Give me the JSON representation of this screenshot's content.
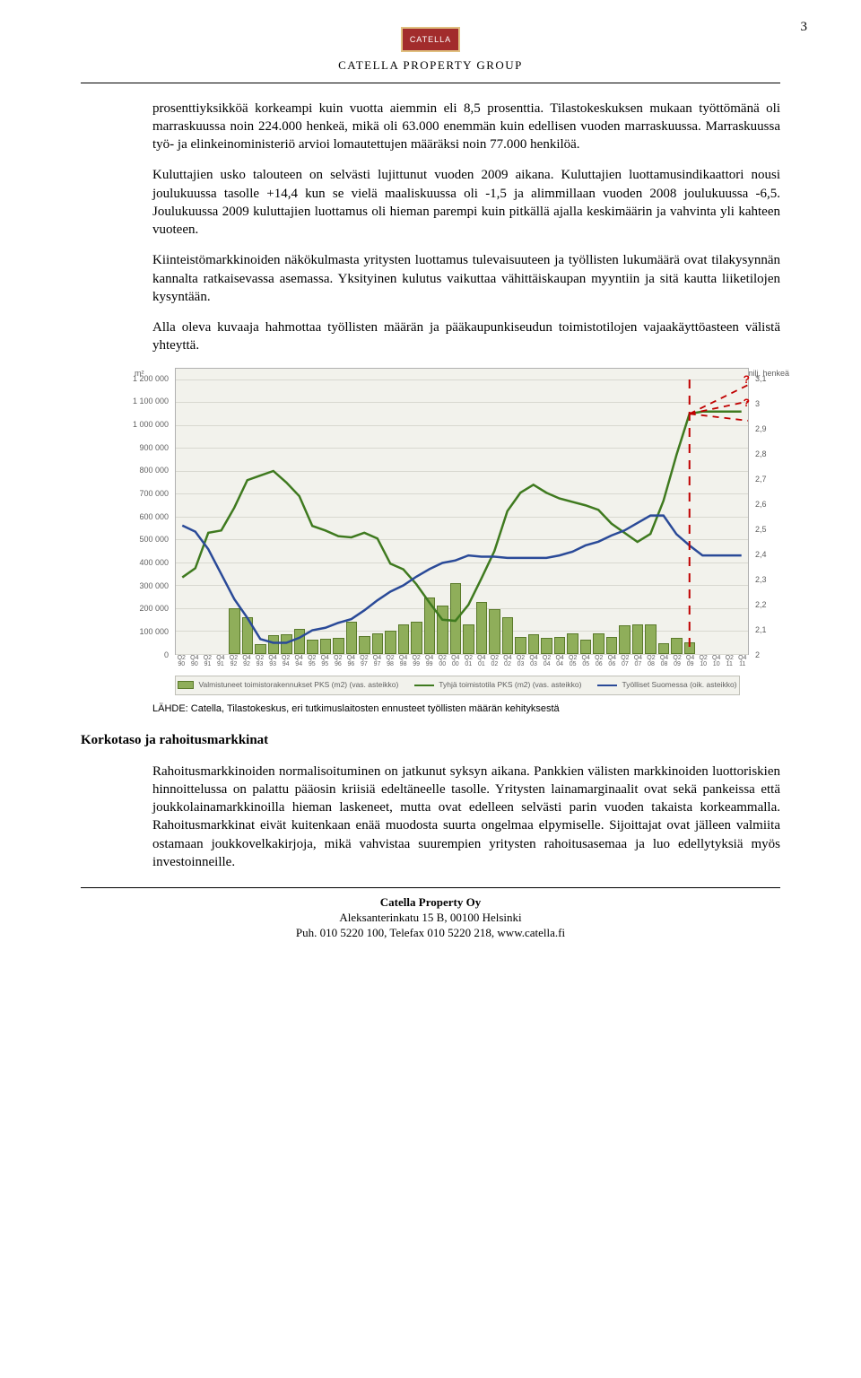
{
  "page_number": "3",
  "logo_text": "CATELLA",
  "company_name": "CATELLA PROPERTY GROUP",
  "paragraphs": {
    "p1": "prosenttiyksikköä korkeampi kuin vuotta aiemmin eli 8,5 prosenttia. Tilastokeskuksen mukaan työttömänä oli marraskuussa noin 224.000 henkeä, mikä oli 63.000 enemmän kuin edellisen vuoden marraskuussa. Marraskuussa työ- ja elinkeinoministeriö arvioi lomautettujen määräksi noin 77.000 henkilöä.",
    "p2": "Kuluttajien usko talouteen on selvästi lujittunut vuoden 2009 aikana. Kuluttajien luottamusindikaattori nousi joulukuussa tasolle +14,4 kun se vielä maaliskuussa oli -1,5 ja alimmillaan vuoden 2008 joulukuussa -6,5. Joulukuussa 2009 kuluttajien luottamus oli hieman parempi kuin pitkällä ajalla keskimäärin ja vahvinta yli kahteen vuoteen.",
    "p3": "Kiinteistömarkkinoiden näkökulmasta yritysten luottamus tulevaisuuteen ja työllisten lukumäärä ovat tilakysynnän kannalta ratkaisevassa asemassa. Yksityinen kulutus vaikuttaa vähittäiskaupan myyntiin ja sitä kautta liiketilojen kysyntään.",
    "p4": "Alla oleva kuvaaja hahmottaa työllisten määrän ja pääkaupunkiseudun toimistotilojen vajaakäyttöasteen välistä yhteyttä.",
    "p5": "Rahoitusmarkkinoiden normalisoituminen on jatkunut syksyn aikana. Pankkien välisten markkinoiden luottoriskien hinnoittelussa on palattu pääosin kriisiä edeltäneelle tasolle. Yritysten lainamarginaalit ovat sekä pankeissa että joukkolainamarkkinoilla hieman laskeneet, mutta ovat edelleen selvästi parin vuoden takaista korkeammalla. Rahoitusmarkkinat eivät kuitenkaan enää muodosta suurta ongelmaa elpymiselle. Sijoittajat ovat jälleen valmiita ostamaan joukkovelkakirjoja, mikä vahvistaa suurempien yritysten rahoitusasemaa ja luo edellytyksiä myös investoinneille."
  },
  "source_line": "LÄHDE: Catella, Tilastokeskus, eri tutkimuslaitosten ennusteet työllisten määrän kehityksestä",
  "section_title": "Korkotaso ja rahoitusmarkkinat",
  "footer": {
    "line1": "Catella Property Oy",
    "line2": "Aleksanterinkatu 15 B, 00100 Helsinki",
    "line3": "Puh. 010 5220 100, Telefax 010 5220 218, www.catella.fi"
  },
  "chart": {
    "left_unit": "m²",
    "right_unit": "milj. henkeä",
    "left_axis": {
      "min": 0,
      "max": 1200000,
      "step": 100000,
      "ticks": [
        "0",
        "100 000",
        "200 000",
        "300 000",
        "400 000",
        "500 000",
        "600 000",
        "700 000",
        "800 000",
        "900 000",
        "1 000 000",
        "1 100 000",
        "1 200 000"
      ]
    },
    "right_axis": {
      "min": 2.0,
      "max": 3.1,
      "step": 0.1,
      "ticks": [
        "2",
        "2,1",
        "2,2",
        "2,3",
        "2,4",
        "2,5",
        "2,6",
        "2,7",
        "2,8",
        "2,9",
        "3",
        "3,1"
      ]
    },
    "x_labels": [
      "Q2 90",
      "Q4 90",
      "Q2 91",
      "Q4 91",
      "Q2 92",
      "Q4 92",
      "Q2 93",
      "Q4 93",
      "Q2 94",
      "Q4 94",
      "Q2 95",
      "Q4 95",
      "Q2 96",
      "Q4 96",
      "Q2 97",
      "Q4 97",
      "Q2 98",
      "Q4 98",
      "Q2 99",
      "Q4 99",
      "Q2 00",
      "Q4 00",
      "Q2 01",
      "Q4 01",
      "Q2 02",
      "Q4 02",
      "Q2 03",
      "Q4 03",
      "Q2 04",
      "Q4 04",
      "Q2 05",
      "Q4 05",
      "Q2 06",
      "Q4 06",
      "Q2 07",
      "Q4 07",
      "Q2 08",
      "Q4 08",
      "Q2 09",
      "Q4 09",
      "Q2 10",
      "Q4 10",
      "Q2 11",
      "Q4 11"
    ],
    "bars_m2": [
      0,
      0,
      0,
      0,
      200000,
      160000,
      42000,
      82000,
      85000,
      110000,
      60000,
      65000,
      70000,
      140000,
      77000,
      90000,
      102000,
      130000,
      140000,
      245000,
      210000,
      310000,
      130000,
      225000,
      195000,
      160000,
      75000,
      85000,
      68000,
      75000,
      90000,
      60000,
      90000,
      75000,
      125000,
      128000,
      130000,
      45000,
      70000,
      50000,
      0,
      0,
      0,
      0
    ],
    "green_line_m2": [
      335000,
      375000,
      530000,
      540000,
      640000,
      760000,
      780000,
      800000,
      750000,
      690000,
      560000,
      540000,
      515000,
      510000,
      530000,
      505000,
      395000,
      370000,
      305000,
      225000,
      150000,
      145000,
      215000,
      330000,
      450000,
      625000,
      705000,
      740000,
      705000,
      680000,
      665000,
      650000,
      630000,
      570000,
      530000,
      490000,
      525000,
      670000,
      870000,
      1050000,
      1060000,
      1060000,
      1060000,
      1060000
    ],
    "blue_line_milj": [
      2.515,
      2.49,
      2.42,
      2.32,
      2.22,
      2.145,
      2.06,
      2.045,
      2.045,
      2.065,
      2.095,
      2.105,
      2.125,
      2.14,
      2.175,
      2.215,
      2.25,
      2.275,
      2.31,
      2.34,
      2.365,
      2.375,
      2.395,
      2.39,
      2.39,
      2.385,
      2.385,
      2.385,
      2.385,
      2.395,
      2.41,
      2.435,
      2.45,
      2.475,
      2.495,
      2.525,
      2.555,
      2.555,
      2.48,
      2.435,
      2.395,
      2.395,
      2.395,
      2.395
    ],
    "colors": {
      "bar_fill": "#8fae5a",
      "bar_border": "#5a7a2a",
      "green_line": "#3f7a1f",
      "blue_line": "#2a4a98",
      "red_dash": "#c00000",
      "plot_bg": "#f2f2ec",
      "grid": "#d8d8d0"
    },
    "legend": {
      "bar": "Valmistuneet toimistorakennukset PKS (m2) (vas. asteikko)",
      "green": "Tyhjä toimistotila PKS (m2) (vas. asteikko)",
      "blue": "Työlliset Suomessa (oik. asteikko)"
    }
  }
}
